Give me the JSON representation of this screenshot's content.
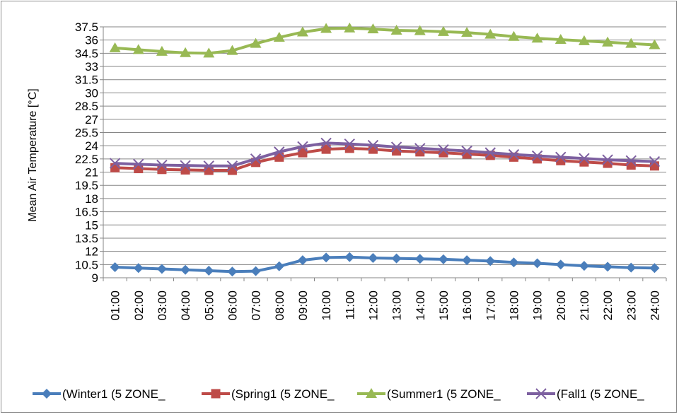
{
  "chart_data": {
    "type": "line",
    "title": "",
    "xlabel": "",
    "ylabel": "Mean Air Temperature [°C]",
    "ylim": [
      9,
      37.5
    ],
    "yticks": [
      "9",
      "10.5",
      "12",
      "13.5",
      "15",
      "16.5",
      "18",
      "19.5",
      "21",
      "22.5",
      "24",
      "25.5",
      "27",
      "28.5",
      "30",
      "31.5",
      "33",
      "34.5",
      "36",
      "37.5"
    ],
    "grid": true,
    "legend_position": "bottom",
    "categories": [
      "01:00",
      "02:00",
      "03:00",
      "04:00",
      "05:00",
      "06:00",
      "07:00",
      "08:00",
      "09:00",
      "10:00",
      "11:00",
      "12:00",
      "13:00",
      "14:00",
      "15:00",
      "16:00",
      "17:00",
      "18:00",
      "19:00",
      "20:00",
      "21:00",
      "22:00",
      "23:00",
      "24:00"
    ],
    "series": [
      {
        "name": "(Winter1 (5 ZONE_",
        "color": "#4a7ebb",
        "marker": "diamond",
        "values": [
          10.2,
          10.1,
          10.0,
          9.9,
          9.8,
          9.7,
          9.75,
          10.3,
          11.0,
          11.3,
          11.35,
          11.25,
          11.2,
          11.15,
          11.1,
          11.0,
          10.9,
          10.75,
          10.65,
          10.5,
          10.35,
          10.25,
          10.15,
          10.1
        ]
      },
      {
        "name": "(Spring1 (5 ZONE_",
        "color": "#be4b48",
        "marker": "square",
        "values": [
          21.5,
          21.4,
          21.3,
          21.25,
          21.2,
          21.2,
          22.1,
          22.7,
          23.2,
          23.6,
          23.7,
          23.6,
          23.4,
          23.3,
          23.2,
          23.05,
          22.9,
          22.7,
          22.5,
          22.3,
          22.15,
          22.0,
          21.8,
          21.7
        ]
      },
      {
        "name": "(Summer1 (5 ZONE_",
        "color": "#98b954",
        "marker": "triangle",
        "values": [
          35.1,
          34.9,
          34.7,
          34.55,
          34.5,
          34.8,
          35.6,
          36.3,
          36.9,
          37.3,
          37.35,
          37.25,
          37.1,
          37.05,
          36.95,
          36.85,
          36.65,
          36.4,
          36.2,
          36.05,
          35.9,
          35.75,
          35.6,
          35.45
        ]
      },
      {
        "name": "(Fall1 (5 ZONE_",
        "color": "#7d60a0",
        "marker": "x",
        "values": [
          22.0,
          21.9,
          21.8,
          21.75,
          21.7,
          21.7,
          22.5,
          23.3,
          23.9,
          24.3,
          24.2,
          24.05,
          23.85,
          23.7,
          23.55,
          23.4,
          23.2,
          23.0,
          22.85,
          22.7,
          22.55,
          22.4,
          22.3,
          22.2
        ]
      }
    ]
  }
}
